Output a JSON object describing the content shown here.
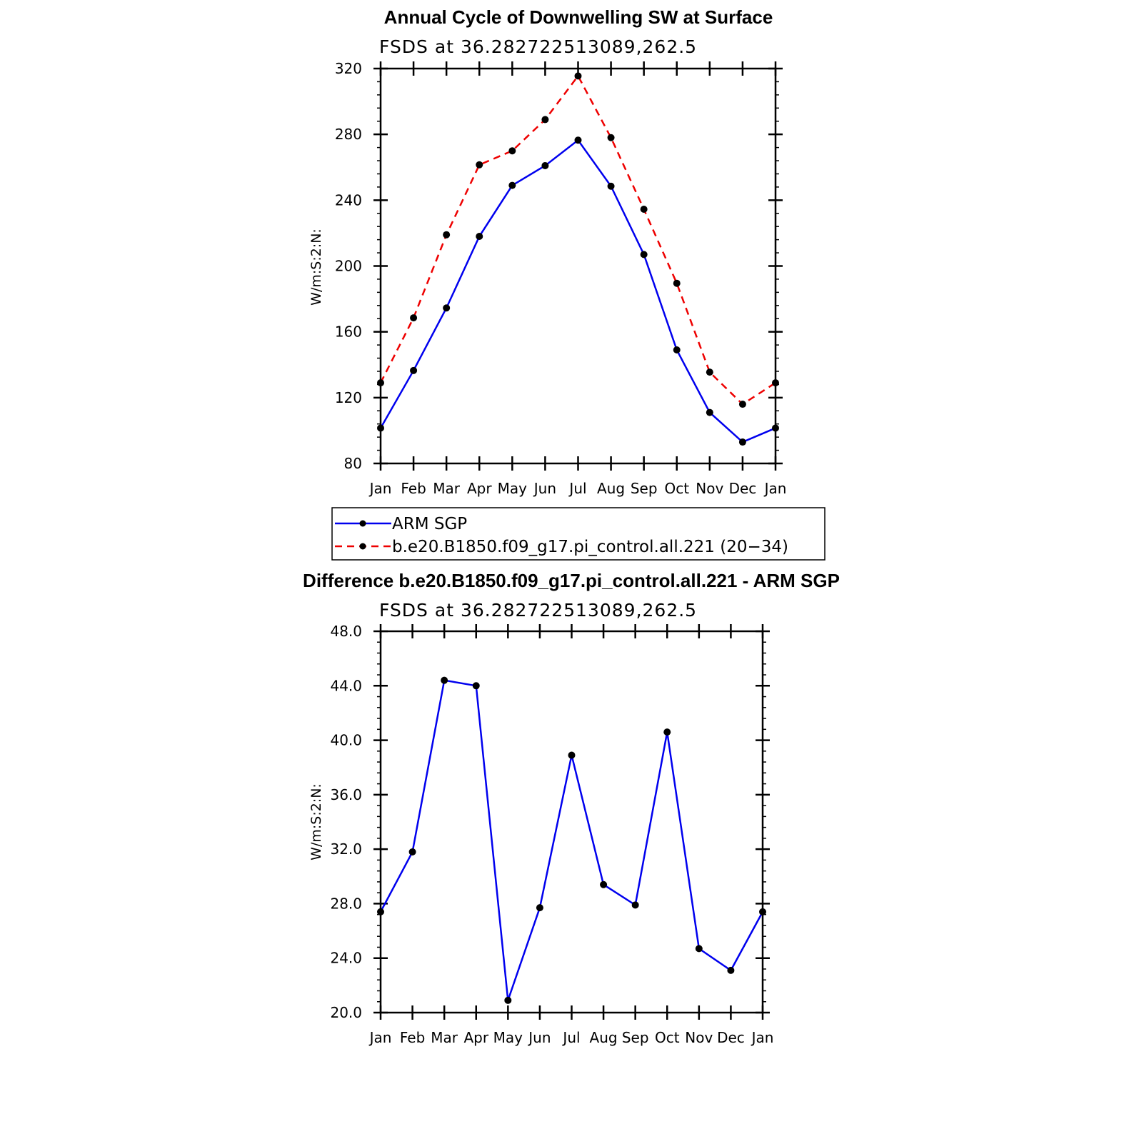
{
  "chart_data": [
    {
      "type": "line",
      "title": "Annual Cycle of Downwelling SW at Surface",
      "subtitle": "FSDS at 36.282722513089,262.5",
      "xlabel": "",
      "ylabel": "W/m:S:2:N:",
      "categories": [
        "Jan",
        "Feb",
        "Mar",
        "Apr",
        "May",
        "Jun",
        "Jul",
        "Aug",
        "Sep",
        "Oct",
        "Nov",
        "Dec",
        "Jan"
      ],
      "ylim": [
        80,
        320
      ],
      "yticks": [
        80,
        120,
        160,
        200,
        240,
        280,
        320
      ],
      "series": [
        {
          "name": "ARM SGP",
          "color": "#0000ee",
          "dash": "solid",
          "values": [
            101.5,
            136.5,
            174.5,
            218,
            249,
            261,
            276.5,
            248.5,
            207,
            149,
            111,
            93,
            101.5
          ]
        },
        {
          "name": "b.e20.B1850.f09_g17.pi_control.all.221 (20−34)",
          "color": "#ee0000",
          "dash": "dashed",
          "values": [
            129,
            168.5,
            219,
            261.5,
            270,
            289,
            315.5,
            278,
            234.5,
            189.5,
            135.5,
            116,
            129
          ]
        }
      ],
      "legend": "bottom"
    },
    {
      "type": "line",
      "title": "Difference b.e20.B1850.f09_g17.pi_control.all.221 - ARM SGP",
      "subtitle": "FSDS at 36.282722513089,262.5",
      "xlabel": "",
      "ylabel": "W/m:S:2:N:",
      "categories": [
        "Jan",
        "Feb",
        "Mar",
        "Apr",
        "May",
        "Jun",
        "Jul",
        "Aug",
        "Sep",
        "Oct",
        "Nov",
        "Dec",
        "Jan"
      ],
      "ylim": [
        20,
        48
      ],
      "yticks": [
        "20.0",
        "24.0",
        "28.0",
        "32.0",
        "36.0",
        "40.0",
        "44.0",
        "48.0"
      ],
      "series": [
        {
          "color": "#0000ee",
          "dash": "solid",
          "values": [
            27.4,
            31.8,
            44.4,
            44.0,
            20.9,
            27.7,
            38.9,
            29.4,
            27.9,
            40.6,
            24.7,
            23.1,
            27.4
          ]
        }
      ]
    }
  ]
}
